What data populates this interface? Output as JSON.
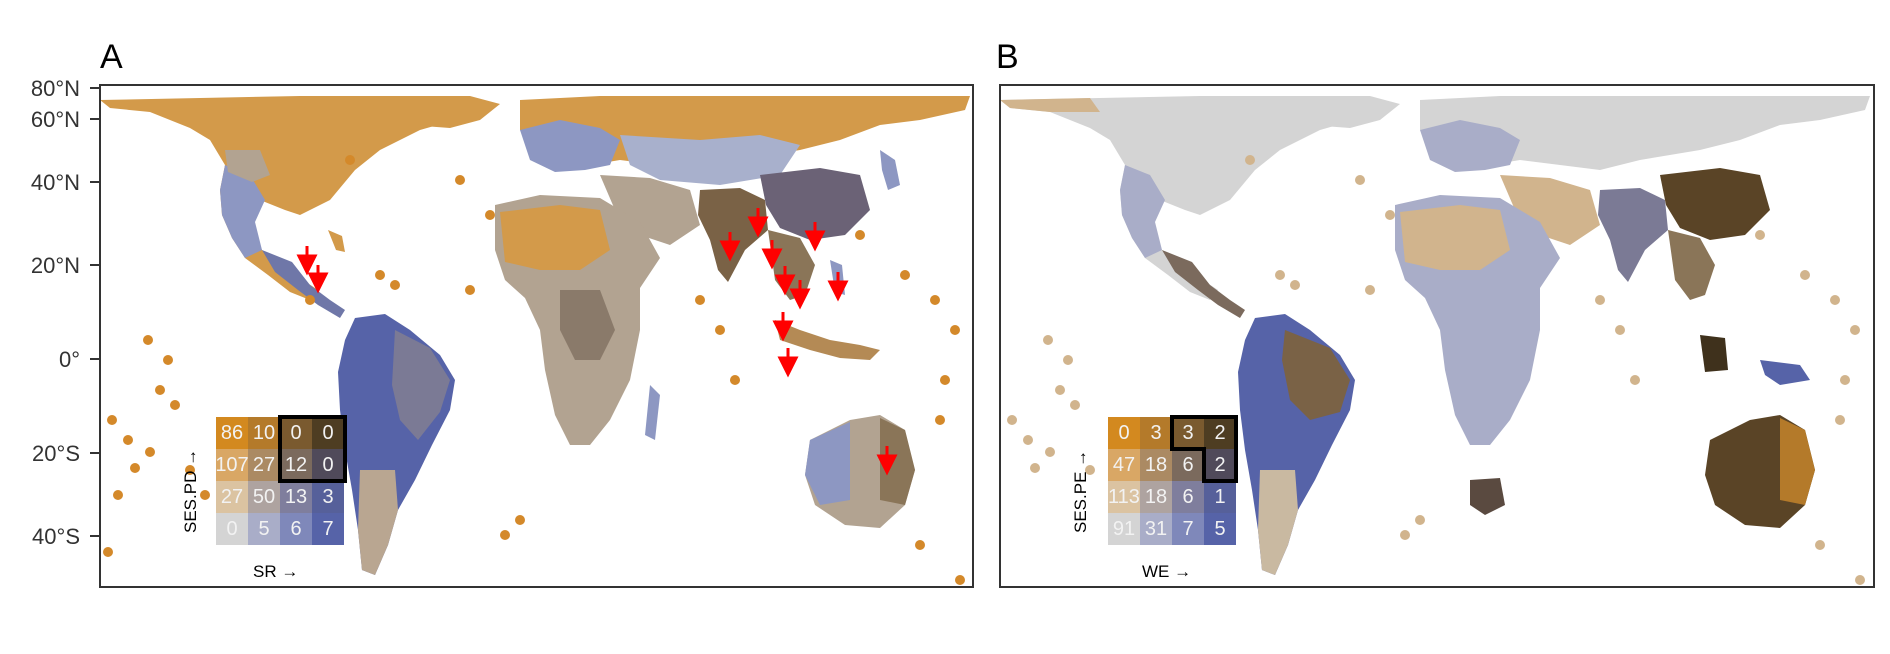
{
  "panels": [
    {
      "letter": "A",
      "legend": {
        "y_label": "SES.PD →",
        "x_label": "SR →",
        "rows": [
          [
            "86",
            "10",
            "0",
            "0"
          ],
          [
            "107",
            "27",
            "12",
            "0"
          ],
          [
            "27",
            "50",
            "13",
            "3"
          ],
          [
            "0",
            "5",
            "6",
            "7"
          ]
        ],
        "highlighted_cells": "top-right 2×2 block"
      },
      "arrow_color": "#ff0000"
    },
    {
      "letter": "B",
      "legend": {
        "y_label": "SES.PE →",
        "x_label": "WE →",
        "rows": [
          [
            "0",
            "3",
            "3",
            "2"
          ],
          [
            "47",
            "18",
            "6",
            "2"
          ],
          [
            "113",
            "18",
            "6",
            "1"
          ],
          [
            "91",
            "31",
            "7",
            "5"
          ]
        ],
        "highlighted_cells": "top-right L-shaped block (3 cells)"
      }
    }
  ],
  "latitude_labels": [
    "80°N",
    "60°N",
    "40°N",
    "20°N",
    "0°",
    "20°S",
    "40°S"
  ],
  "colors": {
    "orange_high": "#d4892a",
    "dark_brown": "#5a4426",
    "blue_high": "#5665a8",
    "light_gray": "#d4d4d4",
    "tan": "#d1b48d",
    "arrow_red": "#ff0000",
    "frame": "#333333"
  },
  "bivariate_palette": [
    [
      "#d3891f",
      "#b47a2a",
      "#7a5a2f",
      "#4e3d22"
    ],
    [
      "#d9a765",
      "#ab8a63",
      "#7b6a5d",
      "#504a5a"
    ],
    [
      "#dbc3a1",
      "#aea3a0",
      "#7f7e9d",
      "#56609a"
    ],
    [
      "#d4d4d4",
      "#a9adc8",
      "#7f88ba",
      "#5663a8"
    ]
  ]
}
